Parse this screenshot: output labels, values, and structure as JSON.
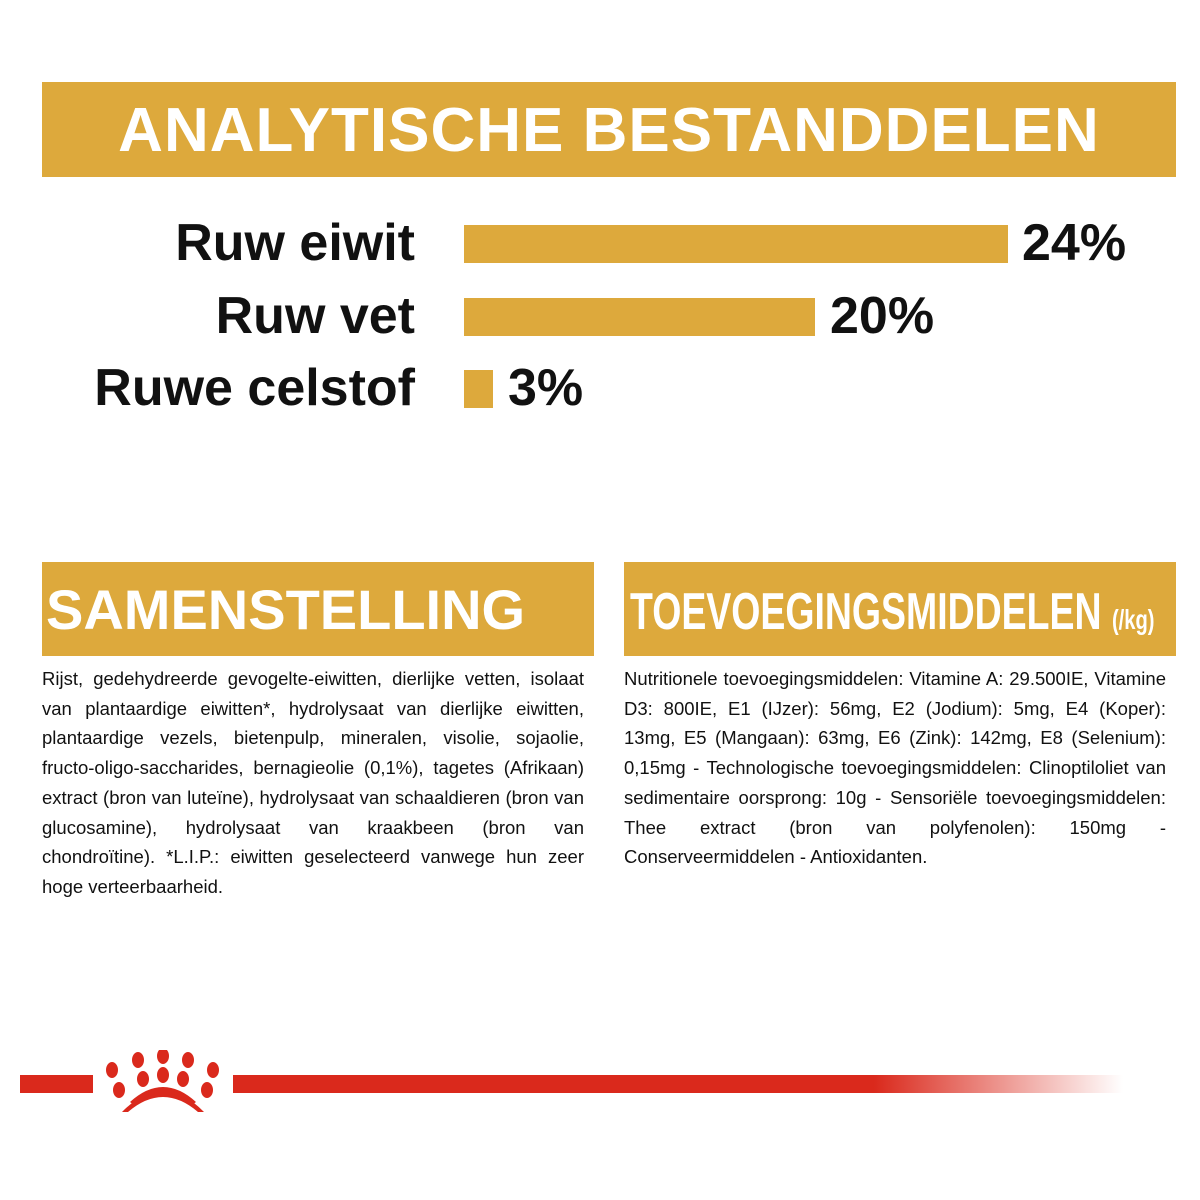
{
  "title": "ANALYTISCHE BESTANDDELEN",
  "analytics": [
    {
      "label": "Ruw eiwit",
      "value": "24%",
      "percent": 24
    },
    {
      "label": "Ruw vet",
      "value": "20%",
      "percent": 20
    },
    {
      "label": "Ruwe celstof",
      "value": "3%",
      "percent": 3
    }
  ],
  "composition": {
    "title": "SAMENSTELLING",
    "text": "Rijst, gedehydreerde gevogelte-eiwitten, dierlijke vetten, isolaat van plantaardige eiwitten*, hydrolysaat van dierlijke eiwitten, plantaardige vezels, bietenpulp, mineralen, visolie, sojaolie, fructo-oligo-saccharides, bernagieolie (0,1%), tagetes (Afrikaan) extract (bron van luteïne), hydrolysaat van schaaldieren (bron van glucosamine), hydrolysaat van kraakbeen (bron van chondroïtine). *L.I.P.: eiwitten geselecteerd vanwege hun zeer hoge verteerbaarheid."
  },
  "additives": {
    "title": "TOEVOEGINGSMIDDELEN",
    "unit": "(/kg)",
    "text": "Nutritionele toevoegingsmiddelen: Vitamine A: 29.500IE, Vitamine D3: 800IE, E1 (IJzer): 56mg, E2 (Jodium): 5mg, E4 (Koper): 13mg, E5 (Mangaan): 63mg, E6 (Zink): 142mg, E8 (Selenium): 0,15mg - Technologische toevoegingsmiddelen: Clinoptiloliet van sedimentaire oorsprong: 10g - Sensoriële toevoegingsmiddelen: Thee extract (bron van polyfenolen): 150mg - Conserveermiddelen - Antioxidanten."
  },
  "colors": {
    "gold": "#DDA93C",
    "red": "#DA291C"
  },
  "logo": "royal-canin-crown-icon"
}
